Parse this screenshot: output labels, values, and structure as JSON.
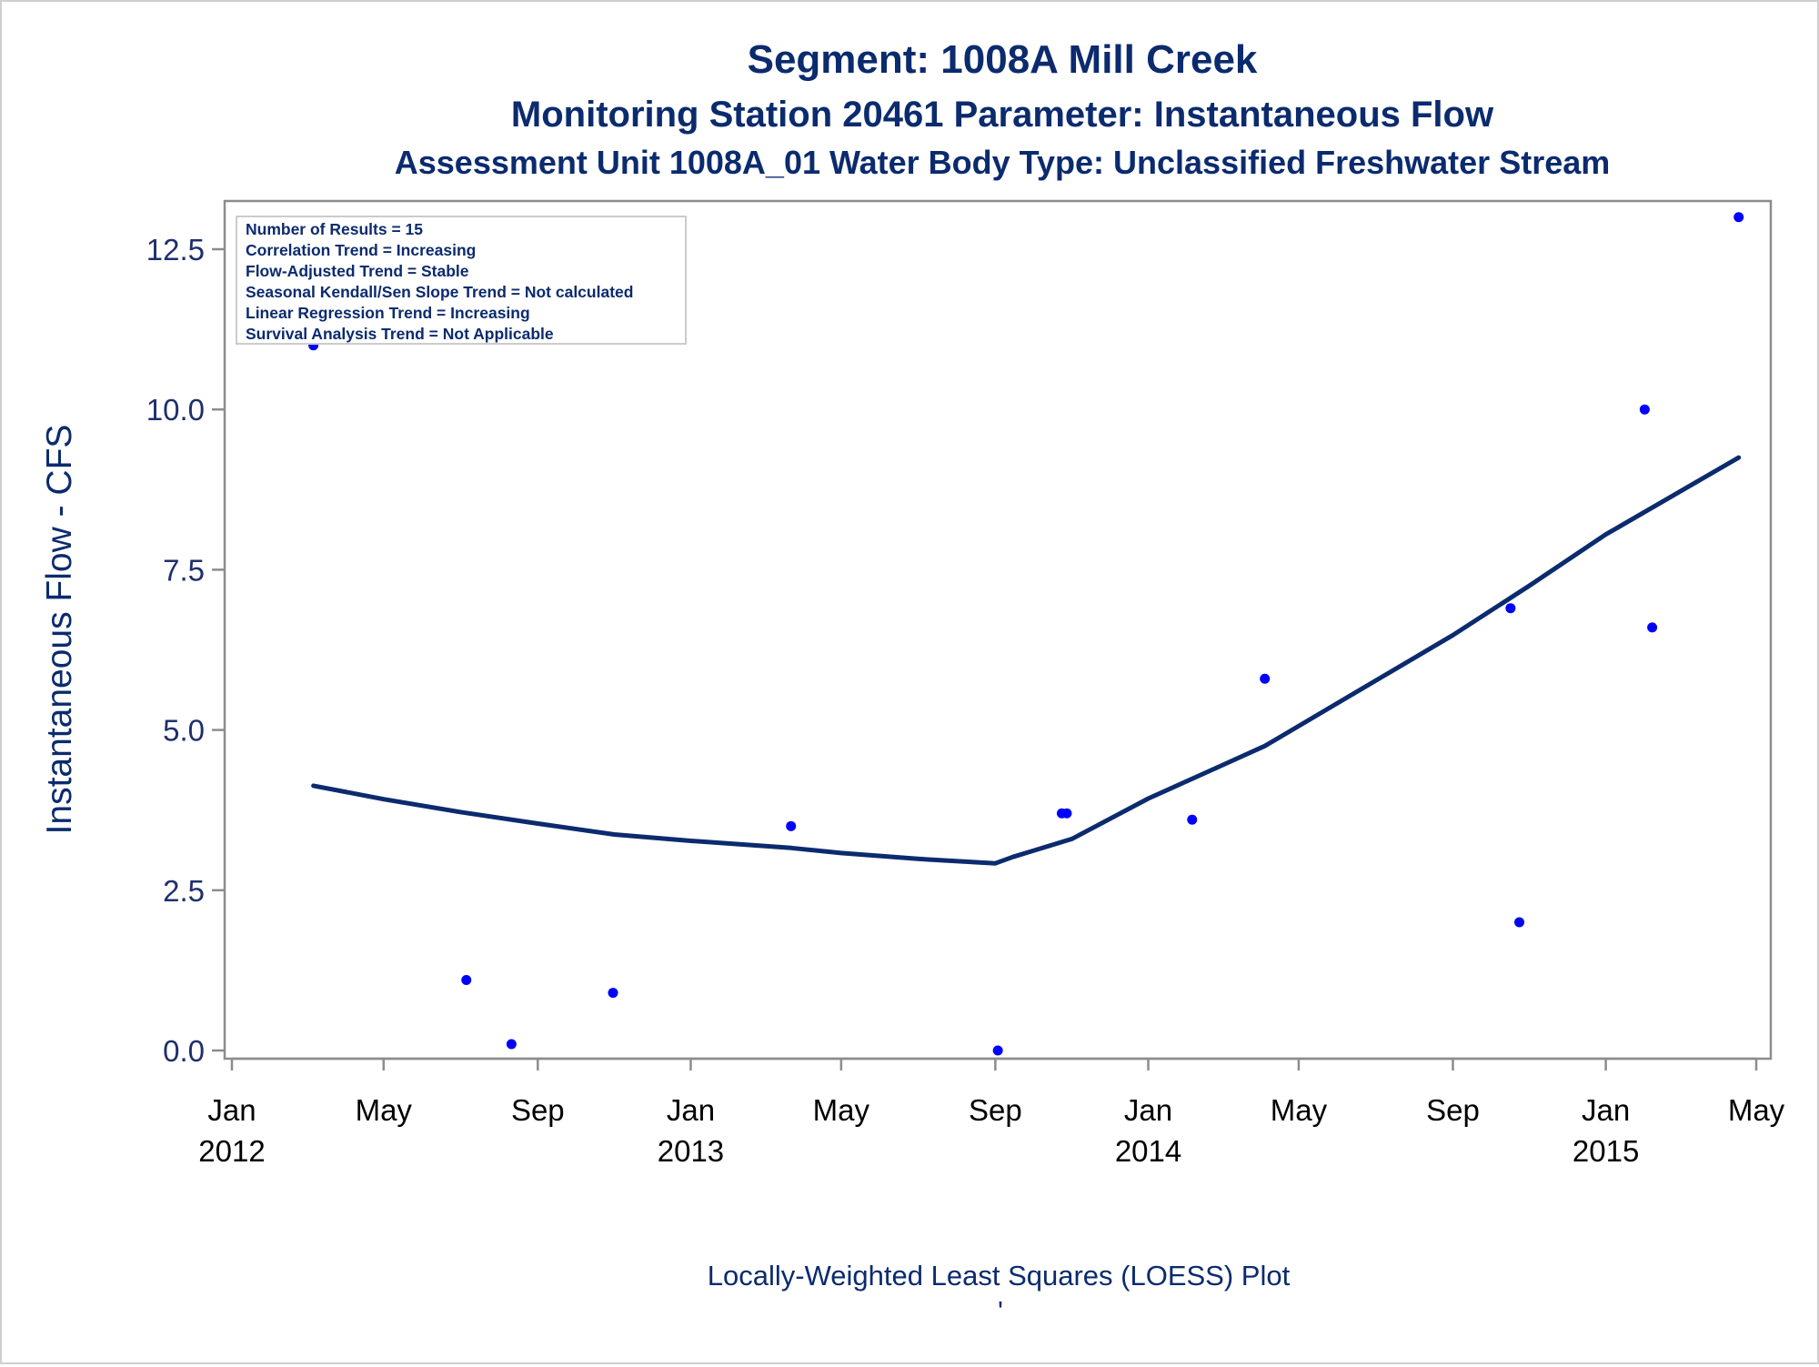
{
  "titles": {
    "line1": "Segment: 1008A  Mill Creek",
    "line2": "Monitoring Station 20461 Parameter: Instantaneous Flow",
    "line3": "Assessment Unit 1008A_01   Water Body Type: Unclassified Freshwater Stream"
  },
  "stats_box": [
    "Number of Results = 15",
    "Correlation Trend = Increasing",
    "Flow-Adjusted Trend = Stable",
    "Seasonal Kendall/Sen Slope Trend = Not calculated",
    "Linear Regression Trend = Increasing",
    "Survival Analysis Trend = Not Applicable"
  ],
  "footnote": "Locally-Weighted Least Squares (LOESS) Plot",
  "footnote_mark": "'",
  "colors": {
    "title": "#0b2b6e",
    "points": "#0000ff",
    "loess_line": "#0b2b6e",
    "axis": "#8c8c8c",
    "frame": "#cfcfcf"
  },
  "chart_data": {
    "type": "scatter",
    "ylabel": "Instantaneous Flow - CFS",
    "xlabel": "",
    "ylim": [
      0,
      12.5
    ],
    "yticks": [
      {
        "value": 0,
        "label": "0.0"
      },
      {
        "value": 2.5,
        "label": "2.5"
      },
      {
        "value": 5,
        "label": "5.0"
      },
      {
        "value": 7.5,
        "label": "7.5"
      },
      {
        "value": 10,
        "label": "10.0"
      },
      {
        "value": 12.5,
        "label": "12.5"
      }
    ],
    "xlim": [
      "2012-01-01",
      "2015-05-01"
    ],
    "xticks": [
      {
        "date": "2012-01-01",
        "line1": "Jan",
        "line2": "2012"
      },
      {
        "date": "2012-05-01",
        "line1": "May",
        "line2": ""
      },
      {
        "date": "2012-09-01",
        "line1": "Sep",
        "line2": ""
      },
      {
        "date": "2013-01-01",
        "line1": "Jan",
        "line2": "2013"
      },
      {
        "date": "2013-05-01",
        "line1": "May",
        "line2": ""
      },
      {
        "date": "2013-09-01",
        "line1": "Sep",
        "line2": ""
      },
      {
        "date": "2014-01-01",
        "line1": "Jan",
        "line2": "2014"
      },
      {
        "date": "2014-05-01",
        "line1": "May",
        "line2": ""
      },
      {
        "date": "2014-09-01",
        "line1": "Sep",
        "line2": ""
      },
      {
        "date": "2015-01-01",
        "line1": "Jan",
        "line2": "2015"
      },
      {
        "date": "2015-05-01",
        "line1": "May",
        "line2": ""
      }
    ],
    "series": [
      {
        "kind": "points",
        "points": [
          {
            "x": "2012-03-06",
            "y": 11.0
          },
          {
            "x": "2012-07-06",
            "y": 1.1
          },
          {
            "x": "2012-08-11",
            "y": 0.1
          },
          {
            "x": "2012-10-31",
            "y": 0.9
          },
          {
            "x": "2013-03-22",
            "y": 3.5
          },
          {
            "x": "2013-09-03",
            "y": 0.0
          },
          {
            "x": "2013-10-24",
            "y": 3.7
          },
          {
            "x": "2013-10-28",
            "y": 3.7
          },
          {
            "x": "2014-02-05",
            "y": 3.6
          },
          {
            "x": "2014-04-04",
            "y": 5.8
          },
          {
            "x": "2014-10-17",
            "y": 6.9
          },
          {
            "x": "2014-10-24",
            "y": 2.0
          },
          {
            "x": "2015-02-01",
            "y": 10.0
          },
          {
            "x": "2015-02-07",
            "y": 6.6
          },
          {
            "x": "2015-04-17",
            "y": 13.0
          }
        ]
      },
      {
        "kind": "loess",
        "points": [
          {
            "x": "2012-03-06",
            "y": 4.13
          },
          {
            "x": "2012-05-01",
            "y": 3.92
          },
          {
            "x": "2012-07-01",
            "y": 3.72
          },
          {
            "x": "2012-09-01",
            "y": 3.54
          },
          {
            "x": "2012-11-01",
            "y": 3.37
          },
          {
            "x": "2013-01-01",
            "y": 3.27
          },
          {
            "x": "2013-03-22",
            "y": 3.16
          },
          {
            "x": "2013-05-01",
            "y": 3.08
          },
          {
            "x": "2013-07-01",
            "y": 2.99
          },
          {
            "x": "2013-09-01",
            "y": 2.92
          },
          {
            "x": "2013-09-15",
            "y": 3.02
          },
          {
            "x": "2013-11-01",
            "y": 3.3
          },
          {
            "x": "2014-01-01",
            "y": 3.93
          },
          {
            "x": "2014-03-01",
            "y": 4.45
          },
          {
            "x": "2014-04-04",
            "y": 4.75
          },
          {
            "x": "2014-06-01",
            "y": 5.42
          },
          {
            "x": "2014-09-01",
            "y": 6.48
          },
          {
            "x": "2014-11-01",
            "y": 7.25
          },
          {
            "x": "2015-01-01",
            "y": 8.05
          },
          {
            "x": "2015-04-17",
            "y": 9.25
          }
        ]
      }
    ]
  }
}
